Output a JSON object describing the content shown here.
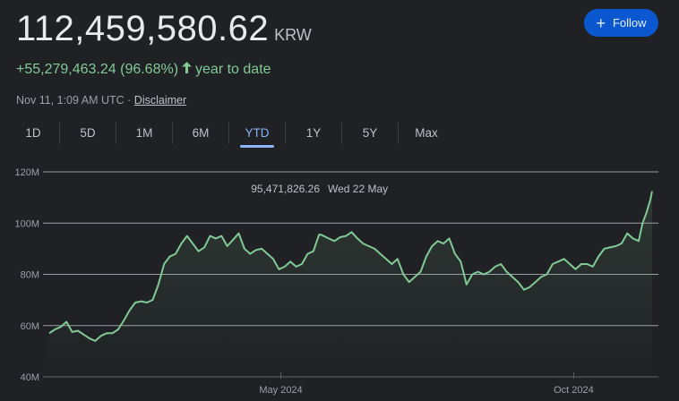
{
  "quote": {
    "price": "112,459,580.62",
    "currency": "KRW",
    "change": "+55,279,463.24 (96.68%)",
    "change_arrow_icon": "arrow-up-icon",
    "period": "year to date",
    "timestamp": "Nov 11, 1:09 AM UTC",
    "separator": "·",
    "disclaimer": "Disclaimer"
  },
  "follow_button": {
    "icon": "plus-icon",
    "label": "Follow",
    "color": "#0b57d0"
  },
  "ranges": {
    "items": [
      "1D",
      "5D",
      "1M",
      "6M",
      "YTD",
      "1Y",
      "5Y",
      "Max"
    ],
    "selected": "YTD"
  },
  "tooltip": {
    "value": "95,471,826.26",
    "date": "Wed 22 May"
  },
  "chart_data": {
    "type": "area",
    "line_color": "#81c995",
    "x_labels": [
      "May 2024",
      "Oct 2024"
    ],
    "y_ticks": [
      40000000,
      60000000,
      80000000,
      100000000,
      120000000
    ],
    "y_tick_labels": [
      "40M",
      "60M",
      "80M",
      "100M",
      "120M"
    ],
    "ylim": [
      40000000,
      120000000
    ],
    "x_range": [
      "2024-01-01",
      "2024-11-11"
    ],
    "grid": true,
    "points": [
      [
        "2024-01-01",
        57.0
      ],
      [
        "2024-01-04",
        58.5
      ],
      [
        "2024-01-07",
        59.5
      ],
      [
        "2024-01-10",
        61.5
      ],
      [
        "2024-01-13",
        57.5
      ],
      [
        "2024-01-16",
        58.0
      ],
      [
        "2024-01-19",
        56.5
      ],
      [
        "2024-01-22",
        55.0
      ],
      [
        "2024-01-25",
        54.0
      ],
      [
        "2024-01-28",
        56.0
      ],
      [
        "2024-01-31",
        57.0
      ],
      [
        "2024-02-03",
        57.0
      ],
      [
        "2024-02-06",
        58.5
      ],
      [
        "2024-02-09",
        62.0
      ],
      [
        "2024-02-12",
        66.0
      ],
      [
        "2024-02-15",
        69.0
      ],
      [
        "2024-02-18",
        69.5
      ],
      [
        "2024-02-21",
        69.0
      ],
      [
        "2024-02-24",
        70.0
      ],
      [
        "2024-02-27",
        76.0
      ],
      [
        "2024-03-01",
        84.0
      ],
      [
        "2024-03-04",
        87.0
      ],
      [
        "2024-03-07",
        88.0
      ],
      [
        "2024-03-10",
        92.0
      ],
      [
        "2024-03-13",
        95.0
      ],
      [
        "2024-03-16",
        92.0
      ],
      [
        "2024-03-19",
        89.0
      ],
      [
        "2024-03-22",
        90.5
      ],
      [
        "2024-03-25",
        95.0
      ],
      [
        "2024-03-28",
        94.0
      ],
      [
        "2024-03-31",
        95.0
      ],
      [
        "2024-04-03",
        91.0
      ],
      [
        "2024-04-06",
        93.5
      ],
      [
        "2024-04-09",
        96.0
      ],
      [
        "2024-04-12",
        90.0
      ],
      [
        "2024-04-15",
        88.0
      ],
      [
        "2024-04-18",
        89.5
      ],
      [
        "2024-04-21",
        90.0
      ],
      [
        "2024-04-24",
        88.0
      ],
      [
        "2024-04-27",
        86.0
      ],
      [
        "2024-04-30",
        82.0
      ],
      [
        "2024-05-03",
        83.0
      ],
      [
        "2024-05-06",
        85.0
      ],
      [
        "2024-05-09",
        83.0
      ],
      [
        "2024-05-12",
        84.0
      ],
      [
        "2024-05-15",
        88.0
      ],
      [
        "2024-05-18",
        89.0
      ],
      [
        "2024-05-21",
        95.5
      ],
      [
        "2024-05-22",
        95.47
      ],
      [
        "2024-05-26",
        94.0
      ],
      [
        "2024-05-29",
        93.0
      ],
      [
        "2024-06-01",
        94.5
      ],
      [
        "2024-06-04",
        95.0
      ],
      [
        "2024-06-07",
        96.5
      ],
      [
        "2024-06-10",
        94.0
      ],
      [
        "2024-06-13",
        92.0
      ],
      [
        "2024-06-16",
        91.0
      ],
      [
        "2024-06-19",
        90.0
      ],
      [
        "2024-06-22",
        88.0
      ],
      [
        "2024-06-25",
        86.0
      ],
      [
        "2024-06-28",
        84.0
      ],
      [
        "2024-07-01",
        86.0
      ],
      [
        "2024-07-04",
        80.0
      ],
      [
        "2024-07-07",
        77.0
      ],
      [
        "2024-07-10",
        79.0
      ],
      [
        "2024-07-13",
        81.0
      ],
      [
        "2024-07-16",
        87.0
      ],
      [
        "2024-07-19",
        91.0
      ],
      [
        "2024-07-22",
        93.0
      ],
      [
        "2024-07-25",
        92.0
      ],
      [
        "2024-07-28",
        94.0
      ],
      [
        "2024-07-31",
        88.0
      ],
      [
        "2024-08-03",
        85.0
      ],
      [
        "2024-08-06",
        76.0
      ],
      [
        "2024-08-09",
        80.0
      ],
      [
        "2024-08-12",
        81.0
      ],
      [
        "2024-08-15",
        80.0
      ],
      [
        "2024-08-18",
        81.0
      ],
      [
        "2024-08-21",
        83.0
      ],
      [
        "2024-08-24",
        84.0
      ],
      [
        "2024-08-27",
        81.0
      ],
      [
        "2024-08-30",
        79.0
      ],
      [
        "2024-09-02",
        77.0
      ],
      [
        "2024-09-05",
        74.0
      ],
      [
        "2024-09-08",
        75.0
      ],
      [
        "2024-09-11",
        77.0
      ],
      [
        "2024-09-14",
        79.0
      ],
      [
        "2024-09-17",
        80.0
      ],
      [
        "2024-09-20",
        84.0
      ],
      [
        "2024-09-23",
        85.0
      ],
      [
        "2024-09-26",
        86.0
      ],
      [
        "2024-09-29",
        84.0
      ],
      [
        "2024-10-02",
        82.0
      ],
      [
        "2024-10-05",
        84.0
      ],
      [
        "2024-10-08",
        84.0
      ],
      [
        "2024-10-11",
        83.0
      ],
      [
        "2024-10-14",
        87.0
      ],
      [
        "2024-10-17",
        90.0
      ],
      [
        "2024-10-20",
        90.5
      ],
      [
        "2024-10-23",
        91.0
      ],
      [
        "2024-10-26",
        92.0
      ],
      [
        "2024-10-29",
        96.0
      ],
      [
        "2024-11-01",
        94.0
      ],
      [
        "2024-11-04",
        93.0
      ],
      [
        "2024-11-06",
        100.0
      ],
      [
        "2024-11-08",
        104.0
      ],
      [
        "2024-11-10",
        109.0
      ],
      [
        "2024-11-11",
        112.46
      ]
    ]
  }
}
